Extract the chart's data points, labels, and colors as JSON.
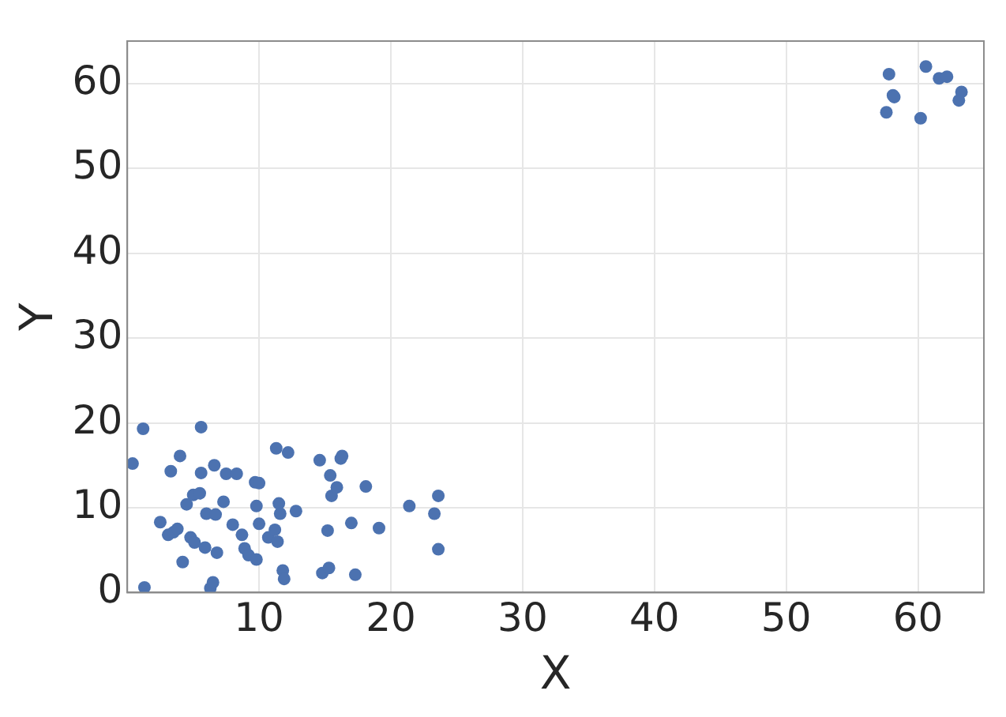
{
  "chart_data": {
    "type": "scatter",
    "xlabel": "X",
    "ylabel": "Y",
    "xlim": [
      0,
      65
    ],
    "ylim": [
      0,
      65
    ],
    "xticks": [
      10,
      20,
      30,
      40,
      50,
      60
    ],
    "yticks": [
      0,
      10,
      20,
      30,
      40,
      50,
      60
    ],
    "grid": true,
    "marker": "circle",
    "legend": false,
    "series": [
      {
        "color": "#4c72b0",
        "x": [
          0.4,
          1.2,
          1.3,
          2.5,
          3.1,
          3.3,
          3.5,
          3.8,
          4.0,
          4.2,
          4.5,
          4.8,
          5.0,
          5.1,
          5.5,
          5.6,
          5.6,
          5.9,
          6.0,
          6.3,
          6.5,
          6.6,
          6.7,
          6.8,
          7.3,
          7.5,
          8.0,
          8.3,
          8.7,
          8.9,
          9.2,
          9.7,
          9.8,
          9.8,
          10.0,
          10.0,
          10.7,
          11.2,
          11.3,
          11.4,
          11.5,
          11.6,
          11.8,
          11.9,
          12.2,
          12.8,
          14.6,
          14.8,
          15.2,
          15.3,
          15.4,
          15.5,
          15.9,
          16.2,
          16.3,
          17.0,
          17.3,
          18.1,
          19.1,
          21.4,
          23.3,
          23.6,
          23.6,
          57.6,
          57.8,
          58.1,
          58.2,
          60.2,
          60.6,
          61.6,
          62.2,
          63.1,
          63.3
        ],
        "values": [
          15.2,
          19.3,
          0.6,
          8.3,
          6.8,
          14.3,
          7.1,
          7.5,
          16.1,
          3.6,
          10.4,
          6.5,
          11.5,
          5.9,
          11.7,
          19.5,
          14.1,
          5.3,
          9.3,
          0.5,
          1.2,
          15.0,
          9.2,
          4.7,
          10.7,
          14.0,
          8.0,
          14.0,
          6.8,
          5.2,
          4.4,
          13.0,
          3.9,
          10.2,
          12.9,
          8.1,
          6.5,
          7.4,
          17.0,
          6.0,
          10.5,
          9.3,
          2.6,
          1.6,
          16.5,
          9.6,
          15.6,
          2.3,
          7.3,
          2.9,
          13.8,
          11.4,
          12.4,
          15.8,
          16.1,
          8.2,
          2.1,
          12.5,
          7.6,
          10.2,
          9.3,
          11.4,
          5.1,
          56.6,
          61.1,
          58.6,
          58.4,
          55.9,
          62.0,
          60.6,
          60.8,
          58.0,
          59.0
        ]
      }
    ]
  }
}
